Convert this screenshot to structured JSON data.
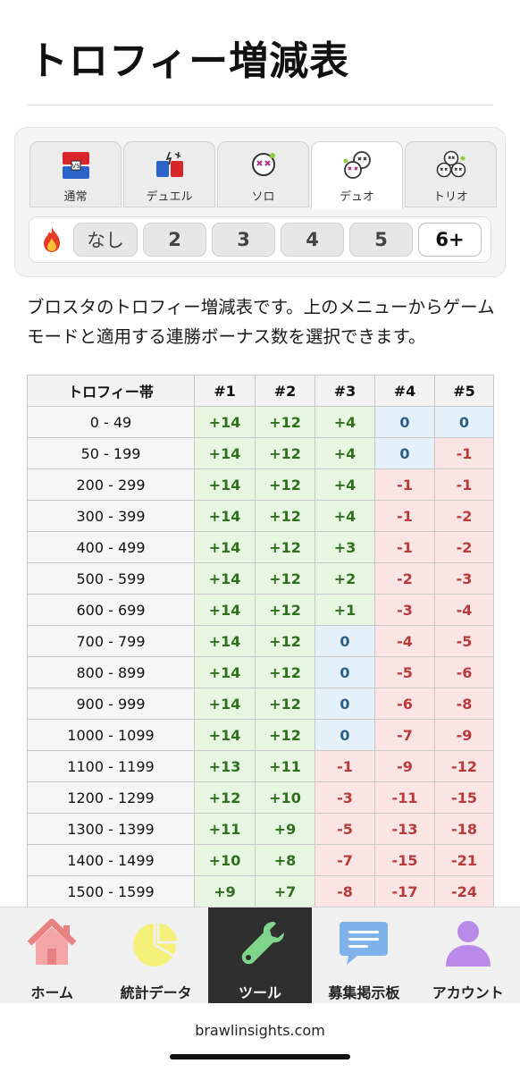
{
  "page": {
    "title": "トロフィー増減表",
    "description": "ブロスタのトロフィー増減表です。上のメニューからゲームモードと適用する連勝ボーナス数を選択できます。"
  },
  "modes": [
    {
      "label": "通常",
      "icon": "versus-icon",
      "active": false
    },
    {
      "label": "デュエル",
      "icon": "duel-icon",
      "active": false
    },
    {
      "label": "ソロ",
      "icon": "solo-skull-icon",
      "active": false
    },
    {
      "label": "デュオ",
      "icon": "duo-skull-icon",
      "active": true
    },
    {
      "label": "トリオ",
      "icon": "trio-skull-icon",
      "active": false
    }
  ],
  "streak": {
    "icon": "fire-icon",
    "options": [
      "なし",
      "2",
      "3",
      "4",
      "5",
      "6+"
    ],
    "selected": "6+"
  },
  "table": {
    "headers": [
      "トロフィー帯",
      "#1",
      "#2",
      "#3",
      "#4",
      "#5"
    ],
    "rows": [
      [
        "0 - 49",
        "+14",
        "+12",
        "+4",
        "0",
        "0"
      ],
      [
        "50 - 199",
        "+14",
        "+12",
        "+4",
        "0",
        "-1"
      ],
      [
        "200 - 299",
        "+14",
        "+12",
        "+4",
        "-1",
        "-1"
      ],
      [
        "300 - 399",
        "+14",
        "+12",
        "+4",
        "-1",
        "-2"
      ],
      [
        "400 - 499",
        "+14",
        "+12",
        "+3",
        "-1",
        "-2"
      ],
      [
        "500 - 599",
        "+14",
        "+12",
        "+2",
        "-2",
        "-3"
      ],
      [
        "600 - 699",
        "+14",
        "+12",
        "+1",
        "-3",
        "-4"
      ],
      [
        "700 - 799",
        "+14",
        "+12",
        "0",
        "-4",
        "-5"
      ],
      [
        "800 - 899",
        "+14",
        "+12",
        "0",
        "-5",
        "-6"
      ],
      [
        "900 - 999",
        "+14",
        "+12",
        "0",
        "-6",
        "-8"
      ],
      [
        "1000 - 1099",
        "+14",
        "+12",
        "0",
        "-7",
        "-9"
      ],
      [
        "1100 - 1199",
        "+13",
        "+11",
        "-1",
        "-9",
        "-12"
      ],
      [
        "1200 - 1299",
        "+12",
        "+10",
        "-3",
        "-11",
        "-15"
      ],
      [
        "1300 - 1399",
        "+11",
        "+9",
        "-5",
        "-13",
        "-18"
      ],
      [
        "1400 - 1499",
        "+10",
        "+8",
        "-7",
        "-15",
        "-21"
      ],
      [
        "1500 - 1599",
        "+9",
        "+7",
        "-8",
        "-17",
        "-24"
      ]
    ]
  },
  "nav": [
    {
      "label": "ホーム",
      "icon": "home-icon",
      "active": false
    },
    {
      "label": "統計データ",
      "icon": "pie-chart-icon",
      "active": false
    },
    {
      "label": "ツール",
      "icon": "wrench-icon",
      "active": true
    },
    {
      "label": "募集掲示板",
      "icon": "chat-bubble-icon",
      "active": false
    },
    {
      "label": "アカウント",
      "icon": "user-icon",
      "active": false
    }
  ],
  "browser": {
    "url": "brawlinsights.com"
  },
  "colors": {
    "positive": "#2f6f1f",
    "zero": "#2b5f87",
    "negative": "#b83a3a",
    "nav_active_bg": "#2f2f2f"
  }
}
